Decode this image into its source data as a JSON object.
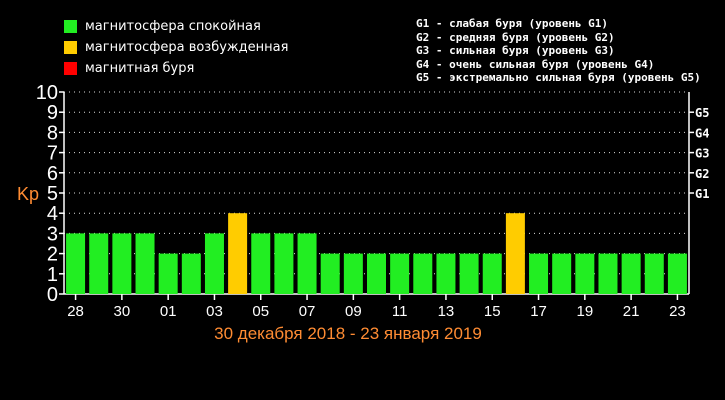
{
  "legend": [
    {
      "label": "магнитосфера спокойная",
      "color": "#22ee22"
    },
    {
      "label": "магнитосфера возбужденная",
      "color": "#ffcc00"
    },
    {
      "label": "магнитная буря",
      "color": "#ff0000"
    }
  ],
  "storm_levels": [
    "G1 - слабая буря (уровень G1)",
    "G2 - средняя буря (уровень G2)",
    "G3 - сильная буря (уровень G3)",
    "G4 - очень сильная буря (уровень G4)",
    "G5 - экстремально сильная буря (уровень G5)"
  ],
  "chart_data": {
    "type": "bar",
    "title": "",
    "ylabel": "Kp",
    "xlabel": "30 декабря 2018 - 23 января 2019",
    "ylim": [
      0,
      10
    ],
    "yticks": [
      0,
      1,
      2,
      3,
      4,
      5,
      6,
      7,
      8,
      9,
      10
    ],
    "grid": true,
    "right_axis_labels": [
      {
        "label": "G1",
        "kp": 5
      },
      {
        "label": "G2",
        "kp": 6
      },
      {
        "label": "G3",
        "kp": 7
      },
      {
        "label": "G4",
        "kp": 8
      },
      {
        "label": "G5",
        "kp": 9
      }
    ],
    "x_tick_labels": [
      "28",
      "30",
      "01",
      "03",
      "05",
      "07",
      "09",
      "11",
      "13",
      "15",
      "17",
      "19",
      "21",
      "23"
    ],
    "values": [
      3,
      3,
      3,
      3,
      2,
      2,
      3,
      4,
      3,
      3,
      3,
      2,
      2,
      2,
      2,
      2,
      2,
      2,
      2,
      4,
      2,
      2,
      2,
      2,
      2,
      2,
      2
    ],
    "colors": {
      "calm": "#22ee22",
      "excited": "#ffcc00",
      "storm": "#ff0000"
    },
    "axis_color": "#ffffff",
    "xlabel_color": "#ff8c33",
    "ylabel_color": "#ff8c33"
  }
}
